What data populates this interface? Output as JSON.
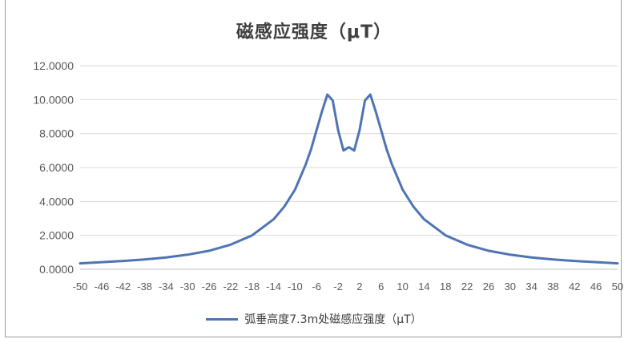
{
  "chart_data": {
    "type": "line",
    "title": "磁感应强度（μT）",
    "xlabel": "",
    "ylabel": "",
    "ylim": [
      0,
      12
    ],
    "yticks": [
      "0.0000",
      "2.0000",
      "4.0000",
      "6.0000",
      "8.0000",
      "10.0000",
      "12.0000"
    ],
    "yticks_values": [
      0,
      2,
      4,
      6,
      8,
      10,
      12
    ],
    "xticks": [
      -50,
      -46,
      -42,
      -38,
      -34,
      -30,
      -26,
      -22,
      -18,
      -14,
      -10,
      -6,
      -2,
      2,
      6,
      10,
      14,
      18,
      22,
      26,
      30,
      34,
      38,
      42,
      46,
      50
    ],
    "xlim": [
      -50,
      50
    ],
    "grid": true,
    "legend_position": "bottom",
    "colors": {
      "series": "#4f74b3",
      "grid": "#d9d9d9",
      "axis": "#bfbfbf",
      "text": "#595959"
    },
    "series": [
      {
        "name": "弧垂高度7.3m处磁感应强度（μT）",
        "x": [
          -50,
          -46,
          -42,
          -38,
          -34,
          -30,
          -26,
          -22,
          -18,
          -14,
          -12,
          -10,
          -8,
          -7,
          -6,
          -5,
          -4,
          -3,
          -2,
          -1,
          0,
          1,
          2,
          3,
          4,
          5,
          6,
          7,
          8,
          10,
          12,
          14,
          18,
          22,
          26,
          30,
          34,
          38,
          42,
          46,
          50
        ],
        "y": [
          0.35,
          0.42,
          0.49,
          0.58,
          0.7,
          0.86,
          1.09,
          1.45,
          2.0,
          2.95,
          3.7,
          4.7,
          6.2,
          7.1,
          8.2,
          9.3,
          10.3,
          9.95,
          8.2,
          7.0,
          7.2,
          7.0,
          8.2,
          9.95,
          10.3,
          9.3,
          8.2,
          7.1,
          6.2,
          4.7,
          3.7,
          2.95,
          2.0,
          1.45,
          1.09,
          0.86,
          0.7,
          0.58,
          0.49,
          0.42,
          0.35
        ]
      }
    ]
  }
}
